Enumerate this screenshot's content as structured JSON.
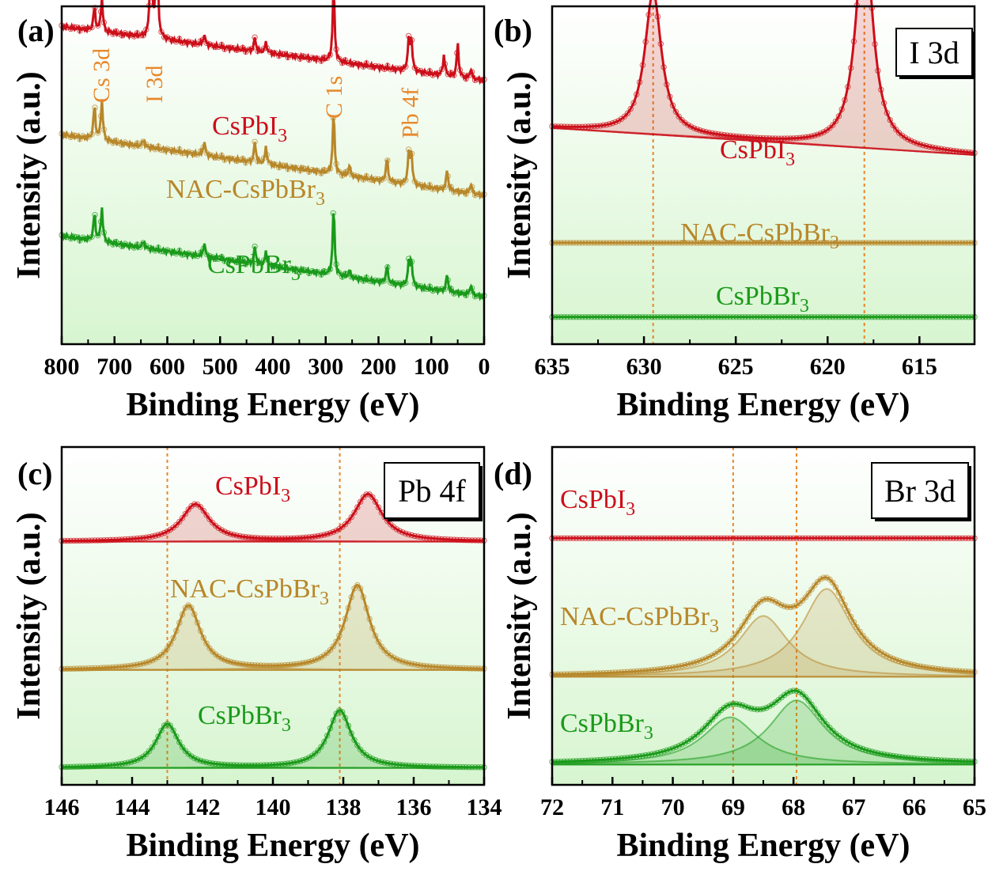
{
  "colors": {
    "cspbi3": "#cc0f1a",
    "nac": "#b8872a",
    "cspbbr3": "#1a9a1a",
    "guide": "#e8872a",
    "bg_top": "#ffffff",
    "bg_bottom": "#d7f5d0"
  },
  "chart_data": [
    {
      "panel": "(a)",
      "type": "line",
      "xlabel": "Binding Energy (eV)",
      "ylabel": "Intensity (a.u.)",
      "xlim": [
        800,
        0
      ],
      "xticks": [
        "800",
        "700",
        "600",
        "500",
        "400",
        "300",
        "200",
        "100",
        "0"
      ],
      "peak_labels": [
        {
          "text": "Cs 3d",
          "x": 725
        },
        {
          "text": "I 3d",
          "x": 625
        },
        {
          "text": "C 1s",
          "x": 285
        },
        {
          "text": "Pb 4f",
          "x": 140
        }
      ],
      "series": [
        {
          "name": "CsPbI3",
          "label_main": "CsPbI",
          "label_sub": "3",
          "color_key": "cspbi3",
          "baseline": 0.78,
          "slope": 0.16,
          "peaks": [
            [
              738,
              0.07
            ],
            [
              724,
              0.1
            ],
            [
              631,
              0.28
            ],
            [
              620,
              0.35
            ],
            [
              530,
              0.03
            ],
            [
              434,
              0.04
            ],
            [
              413,
              0.03
            ],
            [
              285,
              0.22
            ],
            [
              143,
              0.08
            ],
            [
              138,
              0.1
            ],
            [
              76,
              0.06
            ],
            [
              50,
              0.1
            ],
            [
              25,
              0.03
            ]
          ]
        },
        {
          "name": "NAC-CsPbBr3",
          "label_main": "NAC-CsPbBr",
          "label_sub": "3",
          "color_key": "nac",
          "baseline": 0.44,
          "slope": 0.18,
          "peaks": [
            [
              738,
              0.1
            ],
            [
              724,
              0.12
            ],
            [
              645,
              0.02
            ],
            [
              530,
              0.04
            ],
            [
              434,
              0.06
            ],
            [
              413,
              0.05
            ],
            [
              285,
              0.18
            ],
            [
              255,
              0.03
            ],
            [
              184,
              0.07
            ],
            [
              143,
              0.08
            ],
            [
              138,
              0.1
            ],
            [
              70,
              0.06
            ],
            [
              25,
              0.03
            ]
          ]
        },
        {
          "name": "CsPbBr3",
          "label_main": "CsPbBr",
          "label_sub": "3",
          "color_key": "cspbbr3",
          "baseline": 0.14,
          "slope": 0.18,
          "peaks": [
            [
              738,
              0.08
            ],
            [
              724,
              0.1
            ],
            [
              645,
              0.02
            ],
            [
              530,
              0.04
            ],
            [
              434,
              0.05
            ],
            [
              413,
              0.04
            ],
            [
              285,
              0.2
            ],
            [
              255,
              0.02
            ],
            [
              184,
              0.05
            ],
            [
              143,
              0.06
            ],
            [
              138,
              0.08
            ],
            [
              70,
              0.05
            ],
            [
              25,
              0.03
            ]
          ]
        }
      ]
    },
    {
      "panel": "(b)",
      "type": "line",
      "region": "I 3d",
      "xlabel": "Binding Energy (eV)",
      "ylabel": "Intensity (a.u.)",
      "xlim": [
        635,
        612
      ],
      "xticks": [
        "635",
        "630",
        "625",
        "620",
        "615"
      ],
      "guides": [
        629.5,
        618.0
      ],
      "series": [
        {
          "name": "CsPbI3",
          "label_main": "CsPbI",
          "label_sub": "3",
          "color_key": "cspbi3",
          "baseline": 0.56,
          "slope": 0.08,
          "components": [
            [
              629.5,
              0.42,
              0.55
            ],
            [
              618.0,
              0.65,
              0.55
            ]
          ]
        },
        {
          "name": "NAC-CsPbBr3",
          "label_main": "NAC-CsPbBr",
          "label_sub": "3",
          "color_key": "nac",
          "baseline": 0.3,
          "slope": 0.0,
          "components": []
        },
        {
          "name": "CsPbBr3",
          "label_main": "CsPbBr",
          "label_sub": "3",
          "color_key": "cspbbr3",
          "baseline": 0.08,
          "slope": 0.0,
          "components": []
        }
      ]
    },
    {
      "panel": "(c)",
      "type": "line",
      "region": "Pb 4f",
      "xlabel": "Binding Energy (eV)",
      "ylabel": "Intensity (a.u.)",
      "xlim": [
        146,
        134
      ],
      "xticks": [
        "146",
        "144",
        "142",
        "140",
        "138",
        "136",
        "134"
      ],
      "guides": [
        143.0,
        138.1
      ],
      "series": [
        {
          "name": "CsPbI3",
          "label_main": "CsPbI",
          "label_sub": "3",
          "color_key": "cspbi3",
          "baseline": 0.72,
          "slope": 0.0,
          "components": [
            [
              142.2,
              0.11,
              0.48
            ],
            [
              137.3,
              0.14,
              0.48
            ]
          ]
        },
        {
          "name": "NAC-CsPbBr3",
          "label_main": "NAC-CsPbBr",
          "label_sub": "3",
          "color_key": "nac",
          "baseline": 0.34,
          "slope": 0.0,
          "components": [
            [
              142.4,
              0.19,
              0.42
            ],
            [
              137.6,
              0.25,
              0.42
            ]
          ]
        },
        {
          "name": "CsPbBr3",
          "label_main": "CsPbBr",
          "label_sub": "3",
          "color_key": "cspbbr3",
          "baseline": 0.05,
          "slope": 0.0,
          "components": [
            [
              143.0,
              0.13,
              0.4
            ],
            [
              138.1,
              0.17,
              0.4
            ]
          ]
        }
      ]
    },
    {
      "panel": "(d)",
      "type": "line",
      "region": "Br 3d",
      "xlabel": "Binding Energy (eV)",
      "ylabel": "Intensity (a.u.)",
      "xlim": [
        72,
        65
      ],
      "xticks": [
        "72",
        "71",
        "70",
        "69",
        "68",
        "67",
        "66",
        "65"
      ],
      "guides": [
        69.0,
        67.95
      ],
      "series": [
        {
          "name": "CsPbI3",
          "label_main": "CsPbI",
          "label_sub": "3",
          "color_key": "cspbi3",
          "baseline": 0.73,
          "slope": 0.0,
          "components": []
        },
        {
          "name": "NAC-CsPbBr3",
          "label_main": "NAC-CsPbBr",
          "label_sub": "3",
          "color_key": "nac",
          "baseline": 0.32,
          "slope": 0.0,
          "components": [
            [
              68.5,
              0.18,
              0.5
            ],
            [
              67.45,
              0.26,
              0.5
            ]
          ]
        },
        {
          "name": "CsPbBr3",
          "label_main": "CsPbBr",
          "label_sub": "3",
          "color_key": "cspbbr3",
          "baseline": 0.06,
          "slope": 0.0,
          "components": [
            [
              69.05,
              0.14,
              0.55
            ],
            [
              67.95,
              0.19,
              0.55
            ]
          ]
        }
      ]
    }
  ]
}
